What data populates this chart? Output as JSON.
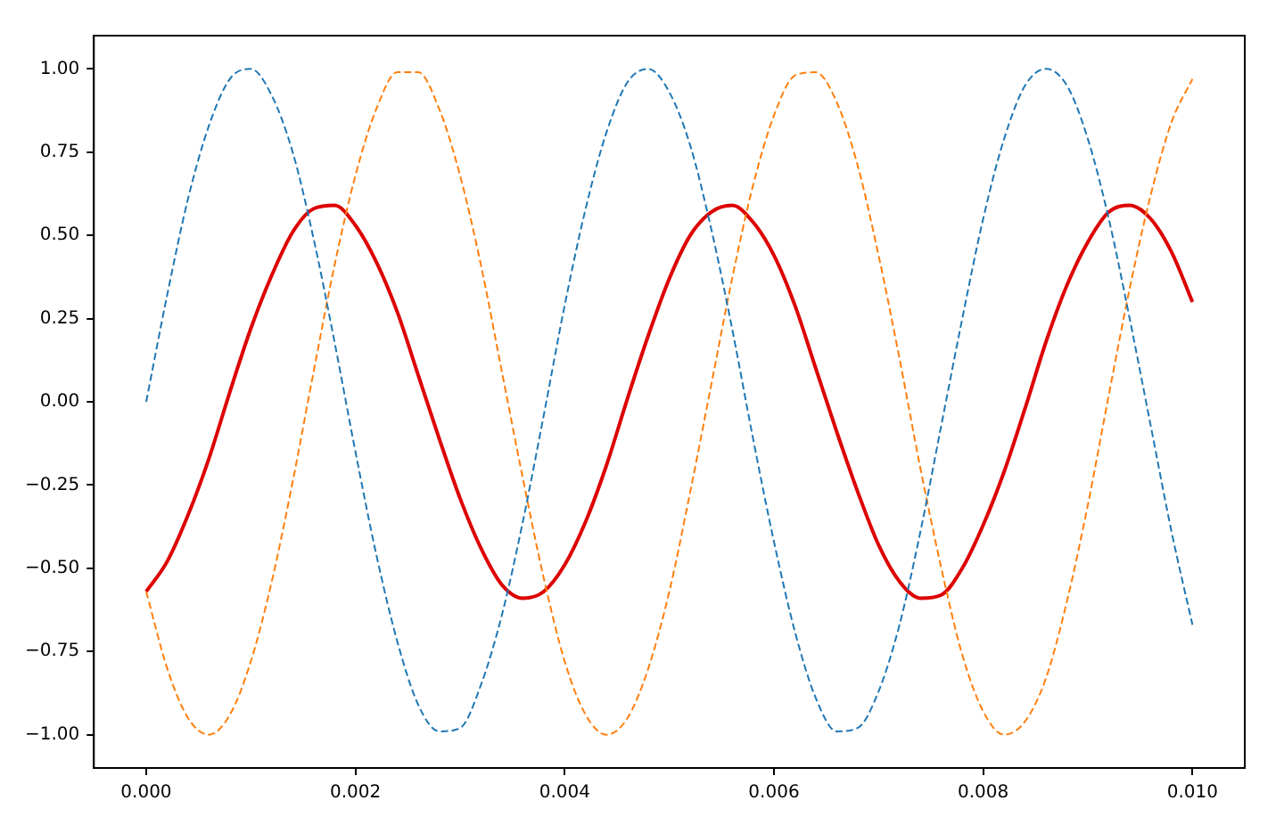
{
  "chart_data": {
    "type": "line",
    "x": [
      0,
      0.0002,
      0.0004,
      0.0006,
      0.0008,
      0.001,
      0.0012,
      0.0014,
      0.0016,
      0.0018,
      0.002,
      0.0022,
      0.0024,
      0.0026,
      0.0028,
      0.003,
      0.0032,
      0.0034,
      0.0036,
      0.0038,
      0.004,
      0.0042,
      0.0044,
      0.0046,
      0.0048,
      0.005,
      0.0052,
      0.0054,
      0.0056,
      0.0058,
      0.006,
      0.0062,
      0.0064,
      0.0066,
      0.0068,
      0.007,
      0.0072,
      0.0074,
      0.0076,
      0.0078,
      0.008,
      0.0082,
      0.0084,
      0.0086,
      0.0088,
      0.009,
      0.0092,
      0.0094,
      0.0096,
      0.0098,
      0.01
    ],
    "series": [
      {
        "color": "#1f77b4",
        "line_style": "dashed",
        "values": [
          0,
          0.32,
          0.61,
          0.83,
          0.97,
          1.0,
          0.92,
          0.75,
          0.49,
          0.18,
          -0.15,
          -0.46,
          -0.72,
          -0.91,
          -0.99,
          -0.98,
          -0.85,
          -0.64,
          -0.36,
          -0.04,
          0.29,
          0.58,
          0.81,
          0.96,
          1.0,
          0.93,
          0.77,
          0.52,
          0.22,
          -0.11,
          -0.42,
          -0.69,
          -0.89,
          -0.99,
          -0.98,
          -0.87,
          -0.67,
          -0.39,
          -0.07,
          0.25,
          0.55,
          0.79,
          0.95,
          1.0,
          0.95,
          0.79,
          0.55,
          0.25,
          -0.07,
          -0.39,
          -0.67
        ]
      },
      {
        "color": "#ff7f0e",
        "line_style": "dashed",
        "values": [
          -0.57,
          -0.8,
          -0.95,
          -1.0,
          -0.94,
          -0.78,
          -0.54,
          -0.24,
          0.09,
          0.41,
          0.68,
          0.88,
          0.99,
          0.99,
          0.88,
          0.68,
          0.41,
          0.09,
          -0.23,
          -0.53,
          -0.78,
          -0.94,
          -1.0,
          -0.95,
          -0.8,
          -0.57,
          -0.27,
          0.05,
          0.37,
          0.65,
          0.86,
          0.98,
          0.99,
          0.9,
          0.71,
          0.44,
          0.13,
          -0.2,
          -0.5,
          -0.76,
          -0.93,
          -1.0,
          -0.96,
          -0.83,
          -0.6,
          -0.31,
          0.02,
          0.34,
          0.62,
          0.84,
          0.97
        ]
      },
      {
        "color": "#dd0000",
        "line_style": "solid",
        "values": [
          -0.57,
          -0.48,
          -0.34,
          -0.17,
          0.03,
          0.22,
          0.38,
          0.51,
          0.58,
          0.59,
          0.53,
          0.42,
          0.27,
          0.08,
          -0.11,
          -0.29,
          -0.44,
          -0.55,
          -0.59,
          -0.57,
          -0.49,
          -0.36,
          -0.19,
          0.01,
          0.2,
          0.37,
          0.5,
          0.57,
          0.59,
          0.54,
          0.44,
          0.29,
          0.1,
          -0.09,
          -0.27,
          -0.43,
          -0.54,
          -0.59,
          -0.58,
          -0.5,
          -0.37,
          -0.21,
          -0.02,
          0.18,
          0.35,
          0.48,
          0.57,
          0.59,
          0.55,
          0.45,
          0.3
        ]
      }
    ],
    "xlim": [
      -0.0005,
      0.0105
    ],
    "xticks": [
      {
        "value": 0,
        "label": "0.000"
      },
      {
        "value": 0.002,
        "label": "0.002"
      },
      {
        "value": 0.004,
        "label": "0.004"
      },
      {
        "value": 0.006,
        "label": "0.006"
      },
      {
        "value": 0.008,
        "label": "0.008"
      },
      {
        "value": 0.01,
        "label": "0.010"
      }
    ],
    "ylim": [
      -1.1,
      1.1
    ],
    "yticks": [
      {
        "value": -1,
        "label": "−1.00"
      },
      {
        "value": -0.75,
        "label": "−0.75"
      },
      {
        "value": -0.5,
        "label": "−0.50"
      },
      {
        "value": -0.25,
        "label": "−0.25"
      },
      {
        "value": 0,
        "label": "0.00"
      },
      {
        "value": 0.25,
        "label": "0.25"
      },
      {
        "value": 0.5,
        "label": "0.50"
      },
      {
        "value": 0.75,
        "label": "0.75"
      },
      {
        "value": 1,
        "label": "1.00"
      }
    ],
    "grid": false,
    "legend": false
  }
}
